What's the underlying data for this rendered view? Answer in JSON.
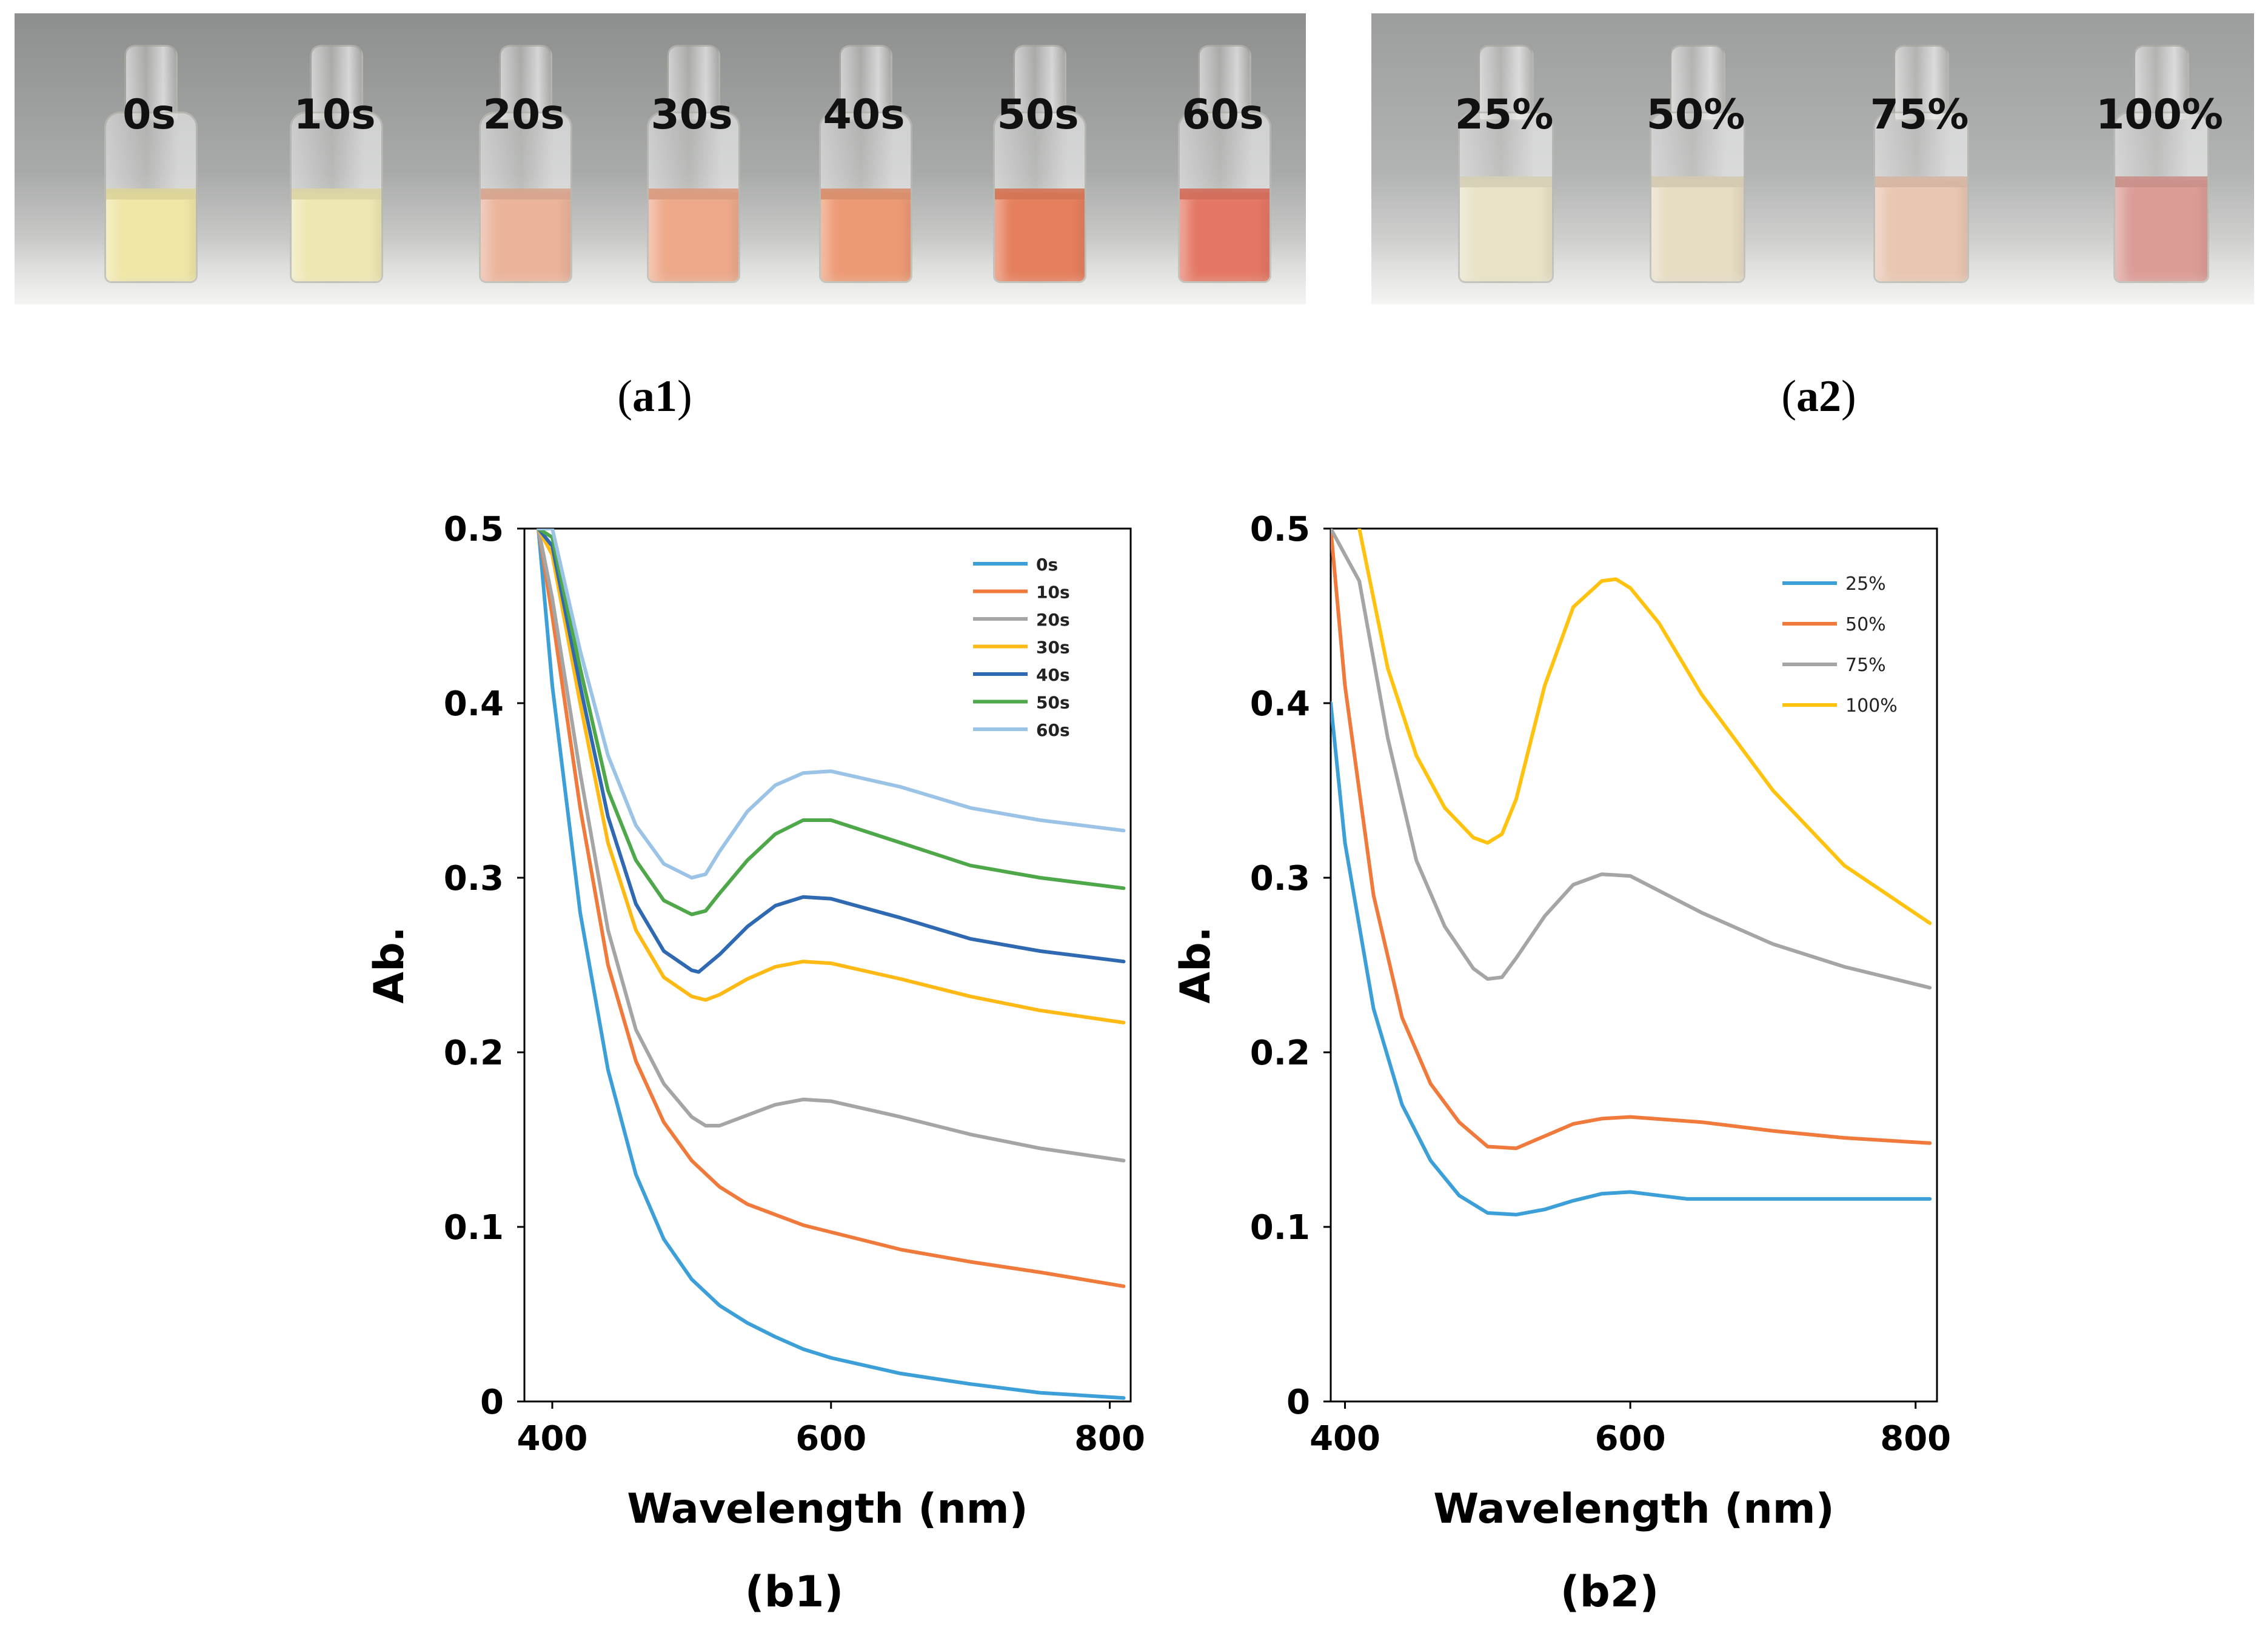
{
  "panels": {
    "a1": {
      "label_open": "(",
      "label_bold": "a1",
      "label_close": ")",
      "vials": [
        {
          "label": "0s",
          "color": "#efe6a6"
        },
        {
          "label": "10s",
          "color": "#eee7b2"
        },
        {
          "label": "20s",
          "color": "#eab39a"
        },
        {
          "label": "30s",
          "color": "#eda98a"
        },
        {
          "label": "40s",
          "color": "#ec9a74"
        },
        {
          "label": "50s",
          "color": "#e57f5c"
        },
        {
          "label": "60s",
          "color": "#e47763"
        }
      ]
    },
    "a2": {
      "label_open": "(",
      "label_bold": "a2",
      "label_close": ")",
      "vials": [
        {
          "label": "25%",
          "color": "#e8e2c6"
        },
        {
          "label": "50%",
          "color": "#e6dcc2"
        },
        {
          "label": "75%",
          "color": "#e9c6b1"
        },
        {
          "label": "100%",
          "color": "#dc9c96"
        }
      ]
    },
    "b1": {
      "label": "(b1)"
    },
    "b2": {
      "label": "(b2)"
    }
  },
  "chart_data": [
    {
      "type": "line",
      "panel": "b1",
      "xlabel": "Wavelength (nm)",
      "ylabel": "Ab.",
      "xlim": [
        380,
        815
      ],
      "ylim": [
        0,
        0.5
      ],
      "xticks": [
        "400",
        "600",
        "800"
      ],
      "yticks": [
        "0",
        "0.1",
        "0.2",
        "0.3",
        "0.4",
        "0.5"
      ],
      "legend_position": "top-right",
      "series": [
        {
          "name": "0s",
          "color": "#3d9fd8",
          "x": [
            390,
            400,
            420,
            440,
            460,
            480,
            500,
            520,
            540,
            560,
            580,
            600,
            650,
            700,
            750,
            810
          ],
          "y": [
            0.5,
            0.41,
            0.28,
            0.19,
            0.13,
            0.093,
            0.07,
            0.055,
            0.045,
            0.037,
            0.03,
            0.025,
            0.016,
            0.01,
            0.005,
            0.002
          ]
        },
        {
          "name": "10s",
          "color": "#ef7a3b",
          "x": [
            390,
            400,
            420,
            440,
            460,
            480,
            500,
            520,
            540,
            560,
            580,
            600,
            650,
            700,
            750,
            810
          ],
          "y": [
            0.5,
            0.45,
            0.34,
            0.25,
            0.195,
            0.16,
            0.138,
            0.123,
            0.113,
            0.107,
            0.101,
            0.097,
            0.087,
            0.08,
            0.074,
            0.066
          ]
        },
        {
          "name": "20s",
          "color": "#a5a5a5",
          "x": [
            390,
            400,
            420,
            440,
            460,
            480,
            500,
            510,
            520,
            540,
            560,
            580,
            600,
            650,
            700,
            750,
            810
          ],
          "y": [
            0.5,
            0.46,
            0.36,
            0.27,
            0.213,
            0.182,
            0.163,
            0.158,
            0.158,
            0.164,
            0.17,
            0.173,
            0.172,
            0.163,
            0.153,
            0.145,
            0.138
          ]
        },
        {
          "name": "30s",
          "color": "#ffb914",
          "x": [
            390,
            400,
            420,
            440,
            460,
            480,
            500,
            510,
            520,
            540,
            560,
            580,
            600,
            650,
            700,
            750,
            810
          ],
          "y": [
            0.5,
            0.485,
            0.4,
            0.32,
            0.27,
            0.243,
            0.232,
            0.23,
            0.233,
            0.242,
            0.249,
            0.252,
            0.251,
            0.242,
            0.232,
            0.224,
            0.217
          ]
        },
        {
          "name": "40s",
          "color": "#2f69b2",
          "x": [
            390,
            400,
            420,
            440,
            460,
            480,
            500,
            505,
            520,
            540,
            560,
            580,
            600,
            650,
            700,
            750,
            810
          ],
          "y": [
            0.5,
            0.49,
            0.41,
            0.335,
            0.285,
            0.258,
            0.247,
            0.246,
            0.256,
            0.272,
            0.284,
            0.289,
            0.288,
            0.277,
            0.265,
            0.258,
            0.252
          ]
        },
        {
          "name": "50s",
          "color": "#4ea84a",
          "x": [
            390,
            400,
            420,
            440,
            460,
            480,
            500,
            510,
            520,
            540,
            560,
            580,
            600,
            650,
            700,
            750,
            810
          ],
          "y": [
            0.5,
            0.495,
            0.42,
            0.35,
            0.31,
            0.287,
            0.279,
            0.281,
            0.291,
            0.31,
            0.325,
            0.333,
            0.333,
            0.32,
            0.307,
            0.3,
            0.294
          ]
        },
        {
          "name": "60s",
          "color": "#9ac3e6",
          "x": [
            390,
            400,
            420,
            440,
            460,
            480,
            500,
            510,
            520,
            540,
            560,
            580,
            600,
            650,
            700,
            750,
            810
          ],
          "y": [
            0.5,
            0.5,
            0.43,
            0.37,
            0.33,
            0.308,
            0.3,
            0.302,
            0.315,
            0.338,
            0.353,
            0.36,
            0.361,
            0.352,
            0.34,
            0.333,
            0.327
          ]
        }
      ]
    },
    {
      "type": "line",
      "panel": "b2",
      "xlabel": "Wavelength (nm)",
      "ylabel": "Ab.",
      "xlim": [
        390,
        815
      ],
      "ylim": [
        0,
        0.5
      ],
      "xticks": [
        "400",
        "600",
        "800"
      ],
      "yticks": [
        "0",
        "0.1",
        "0.2",
        "0.3",
        "0.4",
        "0.5"
      ],
      "legend_position": "top-right",
      "series": [
        {
          "name": "25%",
          "color": "#3d9fd8",
          "x": [
            390,
            400,
            420,
            440,
            460,
            480,
            500,
            520,
            540,
            560,
            580,
            600,
            620,
            640,
            700,
            760,
            810
          ],
          "y": [
            0.4,
            0.32,
            0.225,
            0.17,
            0.138,
            0.118,
            0.108,
            0.107,
            0.11,
            0.115,
            0.119,
            0.12,
            0.118,
            0.116,
            0.116,
            0.116,
            0.116
          ]
        },
        {
          "name": "50%",
          "color": "#ef7a3b",
          "x": [
            390,
            400,
            420,
            440,
            460,
            480,
            500,
            520,
            540,
            560,
            580,
            600,
            650,
            700,
            750,
            810
          ],
          "y": [
            0.5,
            0.41,
            0.29,
            0.22,
            0.182,
            0.16,
            0.146,
            0.145,
            0.152,
            0.159,
            0.162,
            0.163,
            0.16,
            0.155,
            0.151,
            0.148
          ]
        },
        {
          "name": "75%",
          "color": "#a5a5a5",
          "x": [
            390,
            410,
            430,
            450,
            470,
            490,
            500,
            510,
            520,
            540,
            560,
            580,
            600,
            650,
            700,
            750,
            810
          ],
          "y": [
            0.5,
            0.47,
            0.38,
            0.31,
            0.272,
            0.248,
            0.242,
            0.243,
            0.254,
            0.278,
            0.296,
            0.302,
            0.301,
            0.28,
            0.262,
            0.249,
            0.237
          ]
        },
        {
          "name": "100%",
          "color": "#ffc20e",
          "x": [
            410,
            430,
            450,
            470,
            490,
            500,
            510,
            520,
            540,
            560,
            580,
            590,
            600,
            620,
            650,
            700,
            750,
            810
          ],
          "y": [
            0.5,
            0.42,
            0.37,
            0.34,
            0.323,
            0.32,
            0.325,
            0.345,
            0.41,
            0.455,
            0.47,
            0.471,
            0.466,
            0.446,
            0.405,
            0.35,
            0.307,
            0.274
          ]
        }
      ]
    }
  ]
}
